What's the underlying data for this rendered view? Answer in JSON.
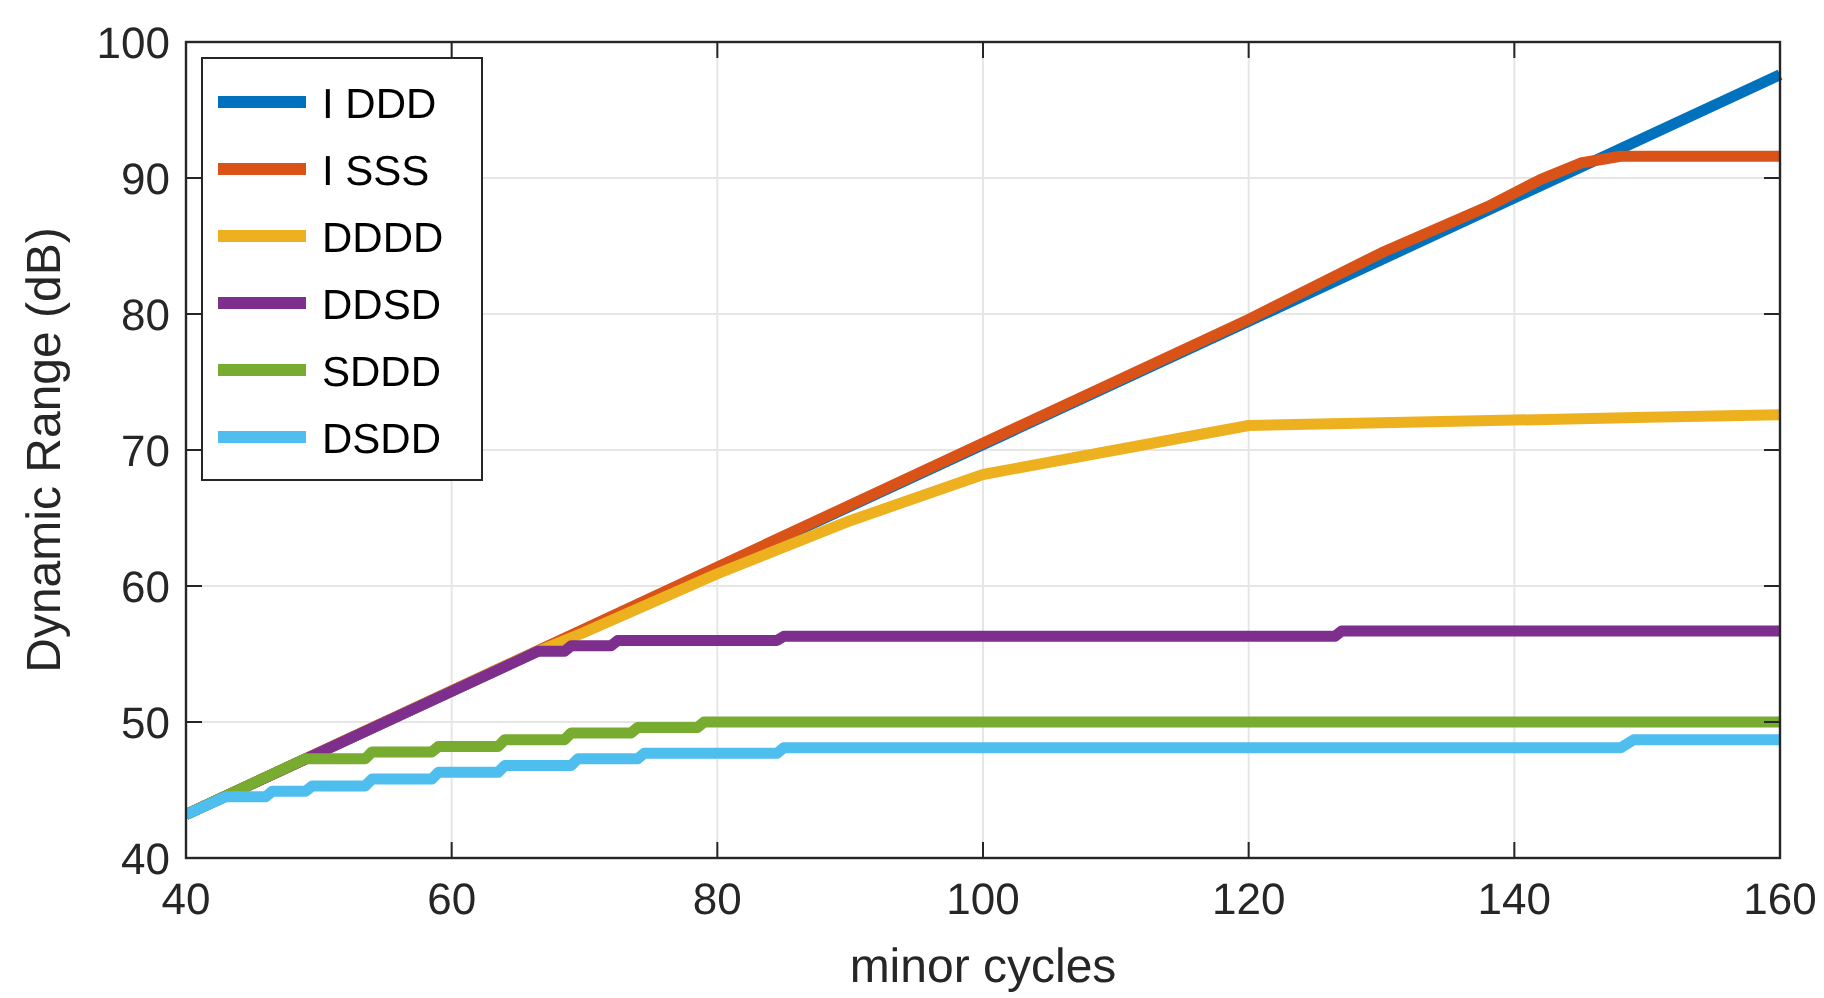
{
  "chart_data": {
    "type": "line",
    "xlabel": "minor cycles",
    "ylabel": "Dynamic Range (dB)",
    "xlim": [
      40,
      160
    ],
    "xticks": [
      40,
      60,
      80,
      100,
      120,
      140,
      160
    ],
    "ylim": [
      40,
      100
    ],
    "yticks": [
      40,
      50,
      60,
      70,
      80,
      90,
      100
    ],
    "grid": true,
    "legend": "top left",
    "line_style": "solid",
    "marker": "none",
    "series": [
      {
        "name": "I DDD",
        "color": "#0072bd",
        "x": [
          40,
          160
        ],
        "values": [
          43.2,
          97.6
        ]
      },
      {
        "name": "I SSS",
        "color": "#d95319",
        "x": [
          40,
          120,
          130,
          138,
          142,
          145,
          148,
          160
        ],
        "values": [
          43.2,
          79.6,
          84.5,
          87.9,
          89.9,
          91.1,
          91.6,
          91.6
        ]
      },
      {
        "name": "DDDD",
        "color": "#edb120",
        "x": [
          40,
          66,
          70,
          80,
          90,
          100,
          110,
          120,
          130,
          140,
          150,
          160
        ],
        "values": [
          43.2,
          55,
          56.6,
          60.9,
          64.8,
          68.2,
          70,
          71.8,
          72,
          72.2,
          72.4,
          72.6
        ]
      },
      {
        "name": "DDSD",
        "color": "#7e2f8e",
        "x": [
          40,
          66.5,
          68.5,
          69,
          72,
          72.5,
          84.5,
          85,
          126.5,
          127,
          160
        ],
        "values": [
          43.2,
          55.2,
          55.2,
          55.6,
          55.6,
          56,
          56,
          56.3,
          56.3,
          56.7,
          56.7
        ]
      },
      {
        "name": "SDDD",
        "color": "#77ac30",
        "x": [
          40,
          49,
          53.5,
          54,
          58.5,
          59,
          63.5,
          64,
          68.5,
          69,
          73.5,
          74,
          78.5,
          79,
          160
        ],
        "values": [
          43.2,
          47.3,
          47.3,
          47.8,
          47.8,
          48.2,
          48.2,
          48.7,
          48.7,
          49.2,
          49.2,
          49.6,
          49.6,
          50,
          50
        ]
      },
      {
        "name": "DSDD",
        "color": "#4dbeee",
        "x": [
          40,
          43,
          46,
          46.5,
          49,
          49.5,
          53.5,
          54,
          58.5,
          59,
          63.5,
          64,
          69,
          69.5,
          74,
          74.5,
          84.5,
          85,
          148,
          149,
          160
        ],
        "values": [
          43.2,
          44.5,
          44.5,
          44.9,
          44.9,
          45.3,
          45.3,
          45.8,
          45.8,
          46.3,
          46.3,
          46.8,
          46.8,
          47.3,
          47.3,
          47.7,
          47.7,
          48.1,
          48.1,
          48.7,
          48.7
        ]
      }
    ]
  }
}
